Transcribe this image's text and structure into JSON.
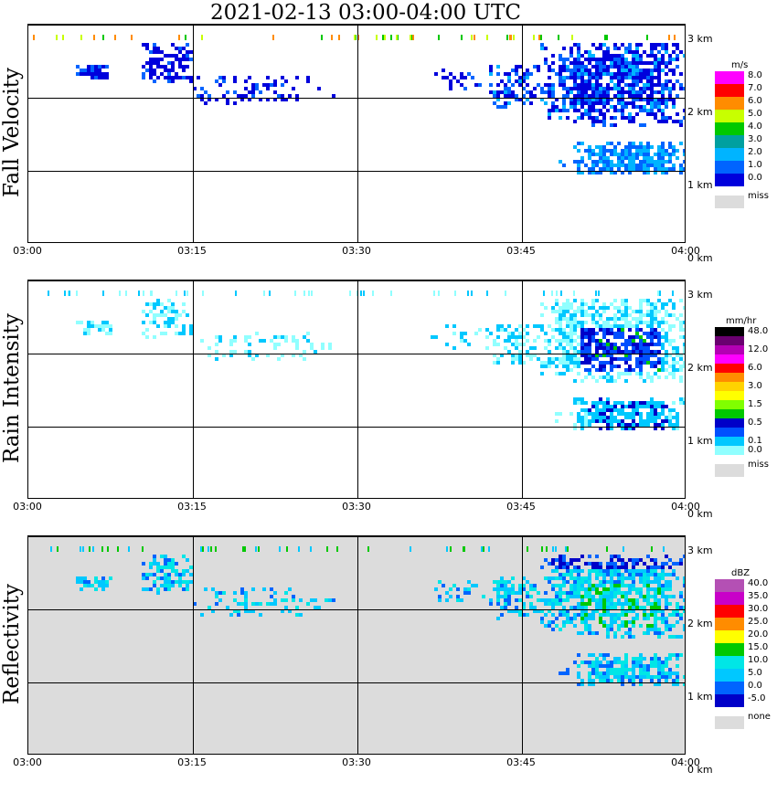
{
  "title": "2021-02-13   03:00-04:00 UTC",
  "x_ticks": [
    "03:00",
    "03:15",
    "03:30",
    "03:45",
    "04:00"
  ],
  "height_ticks": [
    "3 km",
    "2 km",
    "1 km",
    "0 km"
  ],
  "chart_data": [
    {
      "type": "heatmap",
      "title": "Fall Velocity",
      "ylabel": "Fall Velocity",
      "x_range": [
        "03:00",
        "04:00"
      ],
      "y_range_km": [
        0,
        3
      ],
      "background": "#ffffff",
      "legend": {
        "unit": "m/s",
        "levels": [
          {
            "label": "8.0",
            "color": "#ff00ff"
          },
          {
            "label": "7.0",
            "color": "#ff0000"
          },
          {
            "label": "6.0",
            "color": "#ff8c00"
          },
          {
            "label": "5.0",
            "color": "#c8ff00"
          },
          {
            "label": "4.0",
            "color": "#00c800"
          },
          {
            "label": "3.0",
            "color": "#00a0a0"
          },
          {
            "label": "2.0",
            "color": "#00b4ff"
          },
          {
            "label": "1.0",
            "color": "#0064ff"
          },
          {
            "label": "0.0",
            "color": "#0000dc"
          }
        ],
        "miss_label": "miss",
        "miss_color": "#dcdcdc"
      }
    },
    {
      "type": "heatmap",
      "title": "Rain Intensity",
      "ylabel": "Rain Intensity",
      "x_range": [
        "03:00",
        "04:00"
      ],
      "y_range_km": [
        0,
        3
      ],
      "background": "#ffffff",
      "legend": {
        "unit": "mm/hr",
        "levels": [
          {
            "label": "48.0",
            "color": "#000000"
          },
          {
            "label": "",
            "color": "#6a0070"
          },
          {
            "label": "12.0",
            "color": "#b400b4"
          },
          {
            "label": "",
            "color": "#ff00ff"
          },
          {
            "label": "6.0",
            "color": "#ff0000"
          },
          {
            "label": "",
            "color": "#ff8c00"
          },
          {
            "label": "3.0",
            "color": "#ffd200"
          },
          {
            "label": "",
            "color": "#ffff00"
          },
          {
            "label": "1.5",
            "color": "#80ff00"
          },
          {
            "label": "",
            "color": "#00c800"
          },
          {
            "label": "0.5",
            "color": "#0000c8"
          },
          {
            "label": "",
            "color": "#0050ff"
          },
          {
            "label": "0.1",
            "color": "#00c8ff"
          },
          {
            "label": "0.0",
            "color": "#90ffff"
          }
        ],
        "miss_label": "miss",
        "miss_color": "#dcdcdc"
      }
    },
    {
      "type": "heatmap",
      "title": "Reflectivity",
      "ylabel": "Reflectivity",
      "x_range": [
        "03:00",
        "04:00"
      ],
      "y_range_km": [
        0,
        3
      ],
      "background": "#dcdcdc",
      "legend": {
        "unit": "dBZ",
        "levels": [
          {
            "label": "40.0",
            "color": "#b450b4"
          },
          {
            "label": "35.0",
            "color": "#c800c8"
          },
          {
            "label": "30.0",
            "color": "#ff0000"
          },
          {
            "label": "25.0",
            "color": "#ff8c00"
          },
          {
            "label": "20.0",
            "color": "#ffff00"
          },
          {
            "label": "15.0",
            "color": "#00c800"
          },
          {
            "label": "10.0",
            "color": "#00e6e6"
          },
          {
            "label": "5.0",
            "color": "#00c8ff"
          },
          {
            "label": "0.0",
            "color": "#0064ff"
          },
          {
            "label": "-5.0",
            "color": "#0000c8"
          }
        ],
        "miss_label": "none",
        "miss_color": "#dcdcdc"
      }
    }
  ]
}
